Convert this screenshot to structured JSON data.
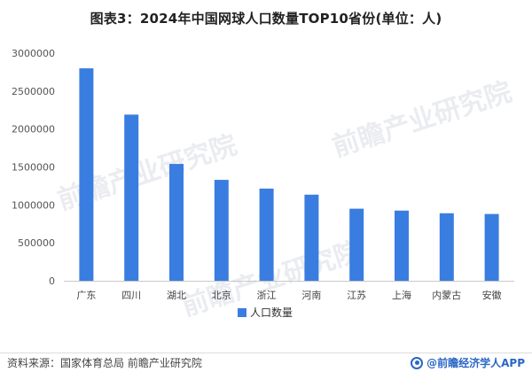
{
  "title": "图表3：2024年中国网球人口数量TOP10省份(单位：人)",
  "footer": {
    "source": "资料来源：国家体育总局 前瞻产业研究院",
    "brand": "@前瞻经济学人APP"
  },
  "watermark": "前瞻产业研究院",
  "colors": {
    "bar": "#3a7de0",
    "axis": "#c8c8c8",
    "text": "#444444"
  },
  "chart_data": {
    "type": "bar",
    "categories": [
      "广东",
      "四川",
      "湖北",
      "北京",
      "浙江",
      "河南",
      "江苏",
      "上海",
      "内蒙古",
      "安徽"
    ],
    "series": [
      {
        "name": "人口数量",
        "values": [
          2800000,
          2190000,
          1540000,
          1330000,
          1215000,
          1135000,
          950000,
          925000,
          890000,
          880000
        ]
      }
    ],
    "yticks": [
      "0",
      "500000",
      "1000000",
      "1500000",
      "2000000",
      "2500000",
      "3000000"
    ],
    "ylim": [
      0,
      3000000
    ],
    "legend_position": "bottom"
  }
}
